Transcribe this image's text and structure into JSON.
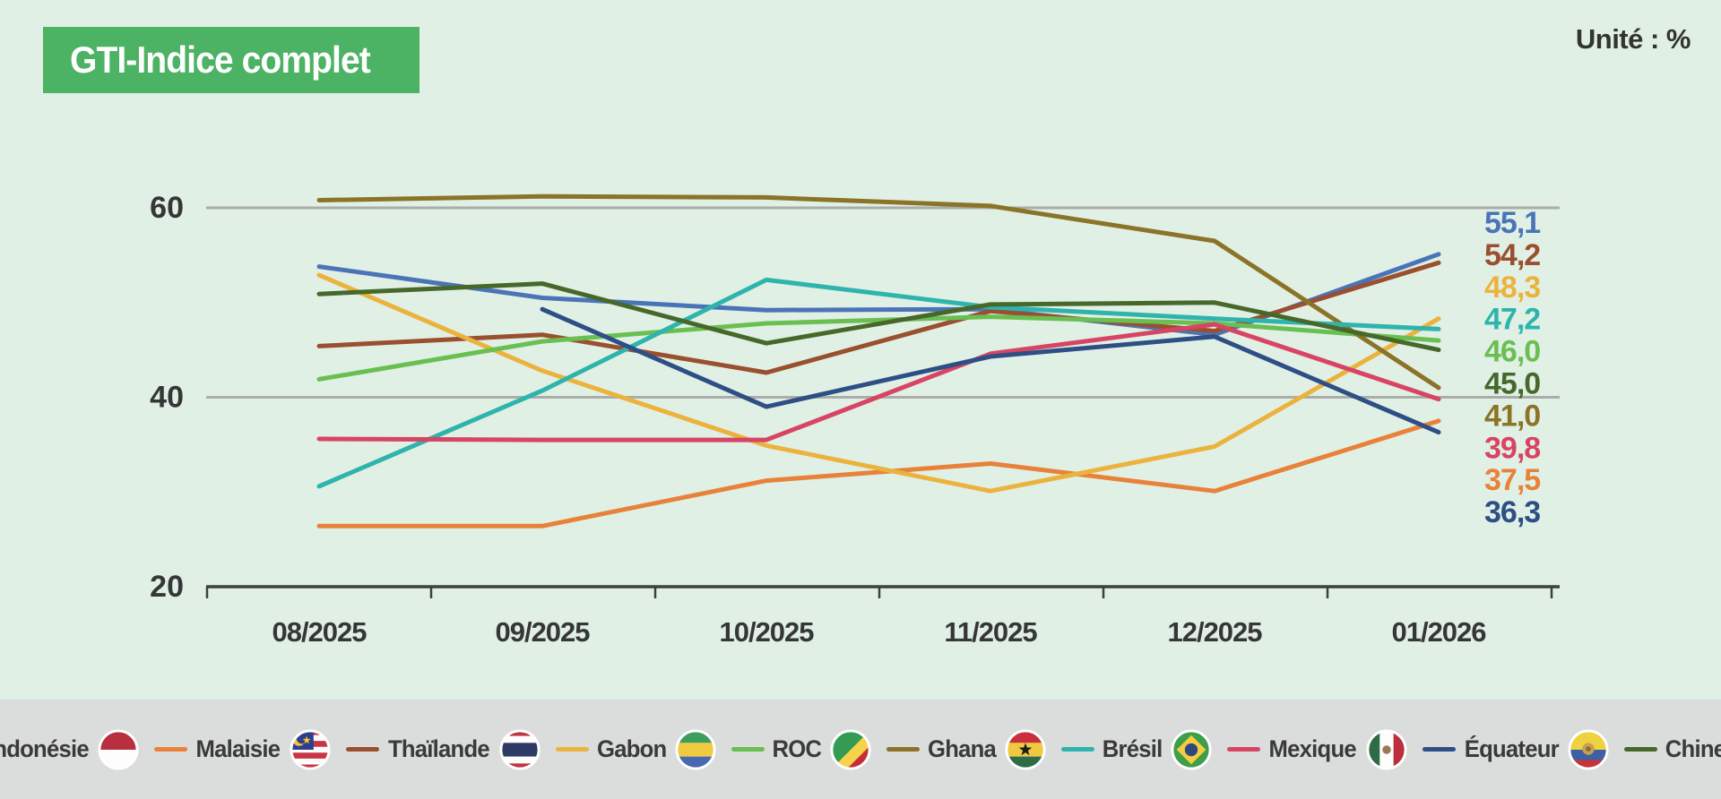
{
  "title": "GTI-Indice complet",
  "unit_label": "Unité : %",
  "colors": {
    "background": "#E0F0E4",
    "title_badge": "#4CB264",
    "legend_strip": "#DBDDDD",
    "gridline": "#ABADAA",
    "axis": "#3F3F3F",
    "text": "#363636"
  },
  "chart_data": {
    "type": "line",
    "title": "GTI-Indice complet",
    "unit": "%",
    "x": [
      "08/2025",
      "09/2025",
      "10/2025",
      "11/2025",
      "12/2025",
      "01/2026"
    ],
    "yticks": [
      20,
      40,
      60
    ],
    "ylim": [
      20,
      65
    ],
    "grid": "horizontal gridlines at 40 and 60",
    "legend_position": "bottom",
    "series": [
      {
        "name": "Indonésie",
        "flag": "indonesia",
        "color": "#4B74B8",
        "values": [
          53.8,
          50.5,
          49.2,
          49.3,
          46.6,
          55.1
        ],
        "end_label": "55,1"
      },
      {
        "name": "Malaisie",
        "flag": "malaysia",
        "color": "#E8823A",
        "values": [
          26.4,
          26.4,
          31.2,
          33.0,
          30.1,
          37.5
        ],
        "end_label": "37,5"
      },
      {
        "name": "Thaïlande",
        "flag": "thailand",
        "color": "#9A4F2E",
        "values": [
          45.4,
          46.6,
          42.6,
          49.1,
          47.0,
          54.2
        ],
        "end_label": "54,2"
      },
      {
        "name": "Gabon",
        "flag": "gabon",
        "color": "#EBB33E",
        "values": [
          52.9,
          42.8,
          34.9,
          30.1,
          34.8,
          48.3
        ],
        "end_label": "48,3"
      },
      {
        "name": "ROC",
        "flag": "congo",
        "color": "#6ABF52",
        "values": [
          41.9,
          45.9,
          47.8,
          48.5,
          47.8,
          46.0
        ],
        "end_label": "46,0"
      },
      {
        "name": "Ghana",
        "flag": "ghana",
        "color": "#8B7327",
        "values": [
          60.8,
          61.2,
          61.1,
          60.2,
          56.5,
          41.0
        ],
        "end_label": "41,0"
      },
      {
        "name": "Brésil",
        "flag": "brazil",
        "color": "#2EB4AC",
        "values": [
          30.6,
          40.7,
          52.4,
          49.5,
          48.3,
          47.2
        ],
        "end_label": "47,2"
      },
      {
        "name": "Mexique",
        "flag": "mexico",
        "color": "#D84463",
        "values": [
          35.6,
          35.5,
          35.5,
          44.6,
          47.7,
          39.8
        ],
        "end_label": "39,8"
      },
      {
        "name": "Équateur",
        "flag": "ecuador",
        "color": "#2E4E86",
        "values": [
          null,
          49.3,
          39.0,
          44.3,
          46.4,
          36.3
        ],
        "end_label": "36,3"
      },
      {
        "name": "Chine",
        "flag": "china",
        "color": "#47682B",
        "values": [
          50.9,
          52.0,
          45.7,
          49.8,
          50.0,
          45.0
        ],
        "end_label": "45,0"
      }
    ]
  }
}
